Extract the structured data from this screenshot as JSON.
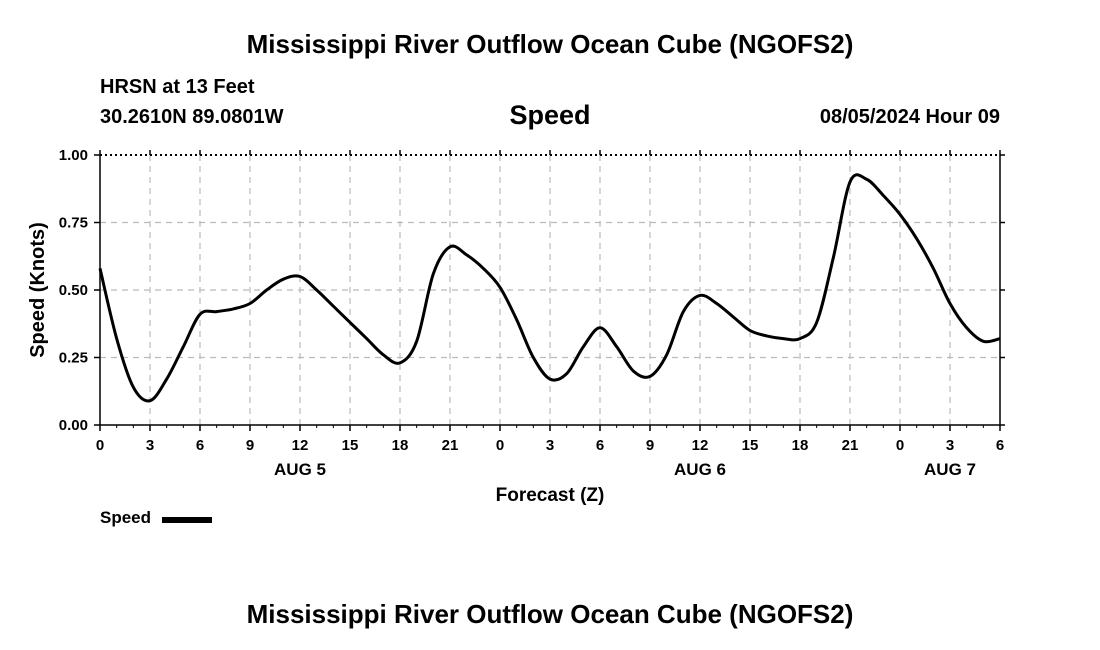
{
  "header": {
    "main_title": "Mississippi River Outflow Ocean Cube (NGOFS2)",
    "station": "HRSN at 13 Feet",
    "coords": "30.2610N  89.0801W",
    "timestamp": "08/05/2024 Hour 09"
  },
  "footer": {
    "title": "Mississippi River Outflow Ocean Cube (NGOFS2)"
  },
  "legend": {
    "label": "Speed"
  },
  "colors": {
    "line": "#000000",
    "grid": "#bbbbbb"
  },
  "chart_data": {
    "type": "line",
    "title": "Speed",
    "xlabel": "Forecast (Z)",
    "ylabel": "Speed (Knots)",
    "ylim": [
      0,
      1
    ],
    "xlim": [
      0,
      54
    ],
    "grid": true,
    "x_ticks": [
      "0",
      "3",
      "6",
      "9",
      "12",
      "15",
      "18",
      "21",
      "0",
      "3",
      "6",
      "9",
      "12",
      "15",
      "18",
      "21",
      "0",
      "3",
      "6"
    ],
    "y_ticks": [
      "0.00",
      "0.25",
      "0.50",
      "0.75",
      "1.00"
    ],
    "day_labels": [
      {
        "label": "AUG 5",
        "hour": 12
      },
      {
        "label": "AUG 6",
        "hour": 36
      },
      {
        "label": "AUG 7",
        "hour": 51
      }
    ],
    "legend_position": "bottom-left",
    "series": [
      {
        "name": "Speed",
        "x": [
          0,
          1,
          2,
          3,
          4,
          5,
          6,
          7,
          8,
          9,
          10,
          11,
          12,
          13,
          14,
          15,
          16,
          17,
          18,
          19,
          20,
          21,
          22,
          23,
          24,
          25,
          26,
          27,
          28,
          29,
          30,
          31,
          32,
          33,
          34,
          35,
          36,
          37,
          38,
          39,
          40,
          41,
          42,
          43,
          44,
          45,
          46,
          47,
          48,
          49,
          50,
          51,
          52,
          53,
          54
        ],
        "values": [
          0.58,
          0.32,
          0.14,
          0.09,
          0.17,
          0.29,
          0.41,
          0.42,
          0.43,
          0.45,
          0.5,
          0.54,
          0.55,
          0.5,
          0.44,
          0.38,
          0.32,
          0.26,
          0.23,
          0.31,
          0.56,
          0.66,
          0.63,
          0.58,
          0.51,
          0.39,
          0.25,
          0.17,
          0.19,
          0.29,
          0.36,
          0.29,
          0.2,
          0.18,
          0.26,
          0.42,
          0.48,
          0.45,
          0.4,
          0.35,
          0.33,
          0.32,
          0.32,
          0.38,
          0.62,
          0.9,
          0.91,
          0.85,
          0.78,
          0.69,
          0.58,
          0.45,
          0.36,
          0.31,
          0.32
        ]
      }
    ]
  }
}
